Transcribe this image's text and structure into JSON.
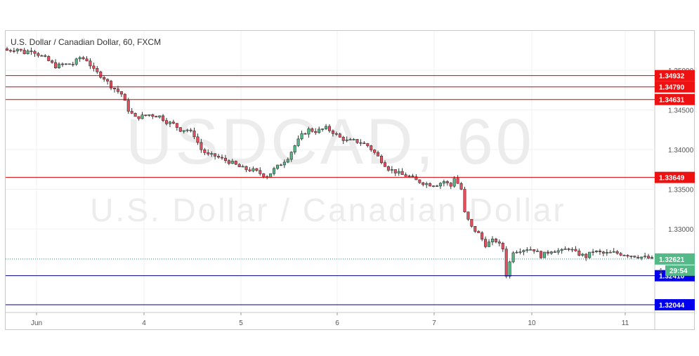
{
  "chart_data": {
    "type": "candlestick",
    "title": "U.S. Dollar / Canadian Dollar, 60, FXCM",
    "watermark": {
      "symbol": "USDCAD, 60",
      "name": "U.S. Dollar / Canadian Dollar"
    },
    "x_tick_labels": [
      "Jun",
      "4",
      "5",
      "6",
      "7",
      "10",
      "11"
    ],
    "y_tick_labels": [
      "1.35000",
      "1.34500",
      "1.34000",
      "1.33500",
      "1.33000"
    ],
    "y_tick_values": [
      1.35,
      1.345,
      1.34,
      1.335,
      1.33
    ],
    "ylim": [
      1.3195,
      1.3545
    ],
    "grid": true,
    "levels": [
      {
        "price": 1.34932,
        "label": "1.34932",
        "type": "resistance"
      },
      {
        "price": 1.3479,
        "label": "1.34790",
        "type": "resistance"
      },
      {
        "price": 1.34631,
        "label": "1.34631",
        "type": "resistance"
      },
      {
        "price": 1.33649,
        "label": "1.33649",
        "type": "resistance"
      },
      {
        "price": 1.3241,
        "label": "1.32410",
        "type": "support"
      },
      {
        "price": 1.32044,
        "label": "1.32044",
        "type": "support"
      }
    ],
    "current_price": {
      "price": 1.32621,
      "label": "1.32621",
      "countdown": "29:54"
    },
    "small_marker_label": "1",
    "close_path": [
      [
        0,
        1.3525
      ],
      [
        3,
        1.3527
      ],
      [
        5,
        1.3522
      ],
      [
        7,
        1.3526
      ],
      [
        9,
        1.352
      ],
      [
        11,
        1.3515
      ],
      [
        14,
        1.3505
      ],
      [
        16,
        1.3507
      ],
      [
        19,
        1.3508
      ],
      [
        21,
        1.3516
      ],
      [
        23,
        1.3513
      ],
      [
        25,
        1.35
      ],
      [
        28,
        1.349
      ],
      [
        30,
        1.348
      ],
      [
        33,
        1.347
      ],
      [
        35,
        1.345
      ],
      [
        37,
        1.344
      ],
      [
        39,
        1.3442
      ],
      [
        41,
        1.3444
      ],
      [
        44,
        1.3442
      ],
      [
        46,
        1.3435
      ],
      [
        48,
        1.3432
      ],
      [
        50,
        1.3425
      ],
      [
        52,
        1.3425
      ],
      [
        54,
        1.3418
      ],
      [
        56,
        1.34
      ],
      [
        58,
        1.3393
      ],
      [
        60,
        1.3392
      ],
      [
        62,
        1.3388
      ],
      [
        65,
        1.3383
      ],
      [
        67,
        1.3378
      ],
      [
        69,
        1.3375
      ],
      [
        71,
        1.3374
      ],
      [
        73,
        1.337
      ],
      [
        75,
        1.3366
      ],
      [
        77,
        1.3375
      ],
      [
        79,
        1.3382
      ],
      [
        81,
        1.339
      ],
      [
        83,
        1.3405
      ],
      [
        85,
        1.3418
      ],
      [
        87,
        1.3425
      ],
      [
        89,
        1.3423
      ],
      [
        92,
        1.3427
      ],
      [
        94,
        1.3422
      ],
      [
        96,
        1.3415
      ],
      [
        98,
        1.3411
      ],
      [
        100,
        1.3411
      ],
      [
        102,
        1.3409
      ],
      [
        104,
        1.3405
      ],
      [
        106,
        1.3396
      ],
      [
        108,
        1.3386
      ],
      [
        110,
        1.3376
      ],
      [
        112,
        1.3372
      ],
      [
        114,
        1.3368
      ],
      [
        116,
        1.3366
      ],
      [
        118,
        1.3361
      ],
      [
        120,
        1.3358
      ],
      [
        122,
        1.3356
      ],
      [
        124,
        1.3356
      ],
      [
        126,
        1.336
      ],
      [
        128,
        1.3354
      ],
      [
        129,
        1.3365
      ],
      [
        131,
        1.335
      ],
      [
        132,
        1.332
      ],
      [
        134,
        1.3302
      ],
      [
        136,
        1.3294
      ],
      [
        138,
        1.328
      ],
      [
        140,
        1.3285
      ],
      [
        141,
        1.3285
      ],
      [
        143,
        1.3275
      ],
      [
        144,
        1.3242
      ],
      [
        145,
        1.3258
      ],
      [
        146,
        1.3272
      ],
      [
        150,
        1.3275
      ],
      [
        152,
        1.3274
      ],
      [
        154,
        1.3266
      ],
      [
        157,
        1.3273
      ],
      [
        160,
        1.3272
      ],
      [
        162,
        1.3276
      ],
      [
        164,
        1.327
      ],
      [
        167,
        1.3265
      ],
      [
        169,
        1.3272
      ],
      [
        172,
        1.3269
      ],
      [
        175,
        1.327
      ],
      [
        178,
        1.3268
      ],
      [
        181,
        1.3266
      ],
      [
        184,
        1.3264
      ],
      [
        186,
        1.3262
      ]
    ]
  }
}
